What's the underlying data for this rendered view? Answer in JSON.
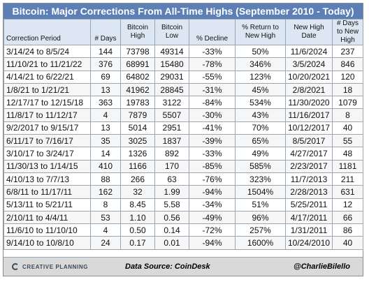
{
  "title": "Bitcoin: Major Corrections From All-Time Highs (September 2010 - Today)",
  "headers": [
    "Correction Period",
    "# Days",
    "Bitcoin High",
    "Bitcoin Low",
    "% Decline",
    "% Return to New High",
    "New High Date",
    "# Days to New High"
  ],
  "rows": [
    [
      "3/14/24 to 8/5/24",
      "144",
      "73798",
      "49314",
      "-33%",
      "50%",
      "11/6/2024",
      "237"
    ],
    [
      "11/10/21 to 11/21/22",
      "376",
      "68991",
      "15480",
      "-78%",
      "346%",
      "3/5/2024",
      "846"
    ],
    [
      "4/14/21 to 6/22/21",
      "69",
      "64802",
      "29031",
      "-55%",
      "123%",
      "10/20/2021",
      "120"
    ],
    [
      "1/8/21 to 1/21/21",
      "13",
      "41962",
      "28845",
      "-31%",
      "45%",
      "2/8/2021",
      "18"
    ],
    [
      "12/17/17 to 12/15/18",
      "363",
      "19783",
      "3122",
      "-84%",
      "534%",
      "11/30/2020",
      "1079"
    ],
    [
      "11/8/17 to 11/12/17",
      "4",
      "7879",
      "5507",
      "-30%",
      "43%",
      "11/16/2017",
      "8"
    ],
    [
      "9/2/2017 to 9/15/17",
      "13",
      "5014",
      "2951",
      "-41%",
      "70%",
      "10/12/2017",
      "40"
    ],
    [
      "6/11/17 to 7/16/17",
      "35",
      "3025",
      "1837",
      "-39%",
      "65%",
      "8/5/2017",
      "55"
    ],
    [
      "3/10/17 to 3/24/17",
      "14",
      "1326",
      "892",
      "-33%",
      "49%",
      "4/27/2017",
      "48"
    ],
    [
      "11/30/13 to 1/14/15",
      "410",
      "1166",
      "170",
      "-85%",
      "585%",
      "2/23/2017",
      "1181"
    ],
    [
      "4/10/13 to 7/7/13",
      "88",
      "266",
      "63",
      "-76%",
      "323%",
      "11/7/2013",
      "211"
    ],
    [
      "6/8/11 to 11/17/11",
      "162",
      "32",
      "1.99",
      "-94%",
      "1504%",
      "2/28/2013",
      "631"
    ],
    [
      "5/13/11 to 5/21/11",
      "8",
      "8.45",
      "5.58",
      "-34%",
      "51%",
      "5/25/2011",
      "12"
    ],
    [
      "2/10/11 to 4/4/11",
      "53",
      "1.10",
      "0.56",
      "-49%",
      "96%",
      "4/17/2011",
      "66"
    ],
    [
      "11/6/10 to 11/10/10",
      "4",
      "0.50",
      "0.14",
      "-72%",
      "257%",
      "1/31/2011",
      "86"
    ],
    [
      "9/14/10 to 10/8/10",
      "24",
      "0.17",
      "0.01",
      "-94%",
      "1600%",
      "10/24/2010",
      "40"
    ]
  ],
  "footer": {
    "logo_text": "CREATIVE PLANNING",
    "source": "Data Source: CoinDesk",
    "handle": "@CharlieBilello"
  },
  "logo_icon": "c-ring-icon",
  "colors": {
    "title_bg": "#5c7fb5",
    "header_bg": "#dde7f3",
    "footer_bg": "#d9d9d9"
  }
}
